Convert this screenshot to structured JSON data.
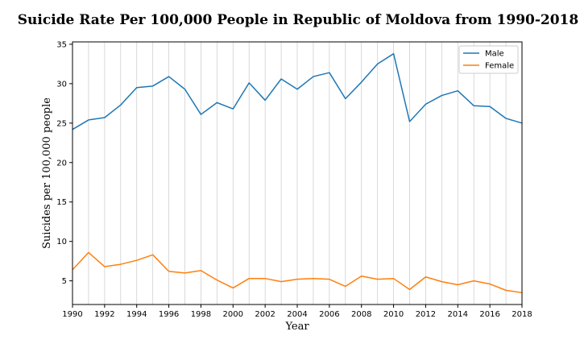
{
  "chart_data": {
    "type": "line",
    "title": "Suicide Rate Per 100,000 People in Republic of Moldova from 1990-2018",
    "xlabel": "Year",
    "ylabel": "Suicides per 100,000 people",
    "xlim": [
      1990,
      2018
    ],
    "ylim": [
      2,
      35.3
    ],
    "xticks": [
      1990,
      1992,
      1994,
      1996,
      1998,
      2000,
      2002,
      2004,
      2006,
      2008,
      2010,
      2012,
      2014,
      2016,
      2018
    ],
    "yticks": [
      5,
      10,
      15,
      20,
      25,
      30,
      35
    ],
    "grid": "vertical",
    "legend_position": "top-right",
    "x": [
      1990,
      1991,
      1992,
      1993,
      1994,
      1995,
      1996,
      1997,
      1998,
      1999,
      2000,
      2001,
      2002,
      2003,
      2004,
      2005,
      2006,
      2007,
      2008,
      2009,
      2010,
      2011,
      2012,
      2013,
      2014,
      2015,
      2016,
      2017,
      2018
    ],
    "series": [
      {
        "name": "Male",
        "color": "#1f77b4",
        "values": [
          24.2,
          25.4,
          25.7,
          27.3,
          29.5,
          29.7,
          30.9,
          29.3,
          26.1,
          27.6,
          26.8,
          30.1,
          27.9,
          30.6,
          29.3,
          30.9,
          31.4,
          28.1,
          30.2,
          32.5,
          33.8,
          25.2,
          27.4,
          28.5,
          29.1,
          27.2,
          27.1,
          25.6,
          25.0
        ]
      },
      {
        "name": "Female",
        "color": "#ff7f0e",
        "values": [
          6.4,
          8.6,
          6.8,
          7.1,
          7.6,
          8.3,
          6.2,
          6.0,
          6.3,
          5.1,
          4.1,
          5.3,
          5.3,
          4.9,
          5.2,
          5.3,
          5.2,
          4.3,
          5.6,
          5.2,
          5.3,
          3.9,
          5.5,
          4.9,
          4.5,
          5.0,
          4.6,
          3.8,
          3.5
        ]
      }
    ]
  }
}
